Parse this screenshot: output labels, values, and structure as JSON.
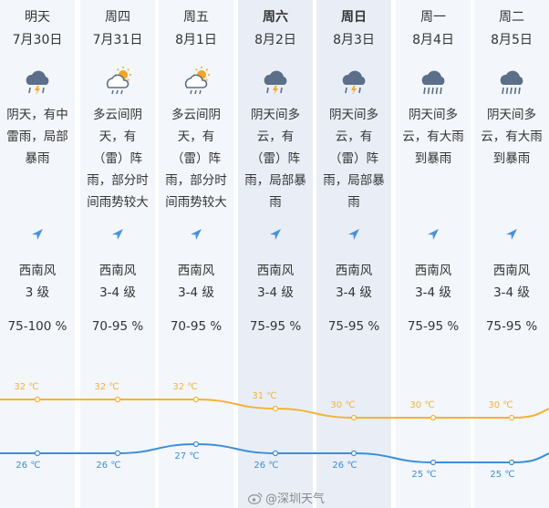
{
  "days": [
    {
      "weekday": "明天",
      "date": "7月30日",
      "icon": "thunderstorm-heavy-rain-icon",
      "desc": "阴天，有中雷雨，局部暴雨",
      "wind_dir": "西南风",
      "wind_level": "3 级",
      "humidity": "75-100 %",
      "bold": false
    },
    {
      "weekday": "周四",
      "date": "7月31日",
      "icon": "cloudy-rain-sun-icon",
      "desc": "多云间阴天，有（雷）阵雨，部分时间雨势较大",
      "wind_dir": "西南风",
      "wind_level": "3-4 级",
      "humidity": "70-95 %",
      "bold": false
    },
    {
      "weekday": "周五",
      "date": "8月1日",
      "icon": "cloudy-rain-sun-icon",
      "desc": "多云间阴天，有（雷）阵雨，部分时间雨势较大",
      "wind_dir": "西南风",
      "wind_level": "3-4 级",
      "humidity": "70-95 %",
      "bold": false
    },
    {
      "weekday": "周六",
      "date": "8月2日",
      "icon": "thunderstorm-heavy-rain-icon",
      "desc": "阴天间多云，有（雷）阵雨，局部暴雨",
      "wind_dir": "西南风",
      "wind_level": "3-4 级",
      "humidity": "75-95 %",
      "bold": true
    },
    {
      "weekday": "周日",
      "date": "8月3日",
      "icon": "thunderstorm-heavy-rain-icon",
      "desc": "阴天间多云，有（雷）阵雨，局部暴雨",
      "wind_dir": "西南风",
      "wind_level": "3-4 级",
      "humidity": "75-95 %",
      "bold": true
    },
    {
      "weekday": "周一",
      "date": "8月4日",
      "icon": "heavy-rain-icon",
      "desc": "阴天间多云，有大雨到暴雨",
      "wind_dir": "西南风",
      "wind_level": "3-4 级",
      "humidity": "75-95 %",
      "bold": false
    },
    {
      "weekday": "周二",
      "date": "8月5日",
      "icon": "heavy-rain-icon",
      "desc": "阴天间多云，有大雨到暴雨",
      "wind_dir": "西南风",
      "wind_level": "3-4 级",
      "humidity": "75-95 %",
      "bold": false
    }
  ],
  "temperature": {
    "unit": "℃",
    "high": [
      32,
      32,
      32,
      31,
      30,
      30,
      30
    ],
    "low": [
      26,
      26,
      27,
      26,
      26,
      25,
      25
    ],
    "high_color": "#f5b335",
    "low_color": "#3b8fd9"
  },
  "colors": {
    "column_bg": "#f3f6fa",
    "column_bg_highlight": "#e9eef6",
    "icon_cloud": "#5b6e8a",
    "icon_sun": "#f2a623",
    "arrow": "#4a90d9"
  },
  "watermark": "@深圳天气"
}
